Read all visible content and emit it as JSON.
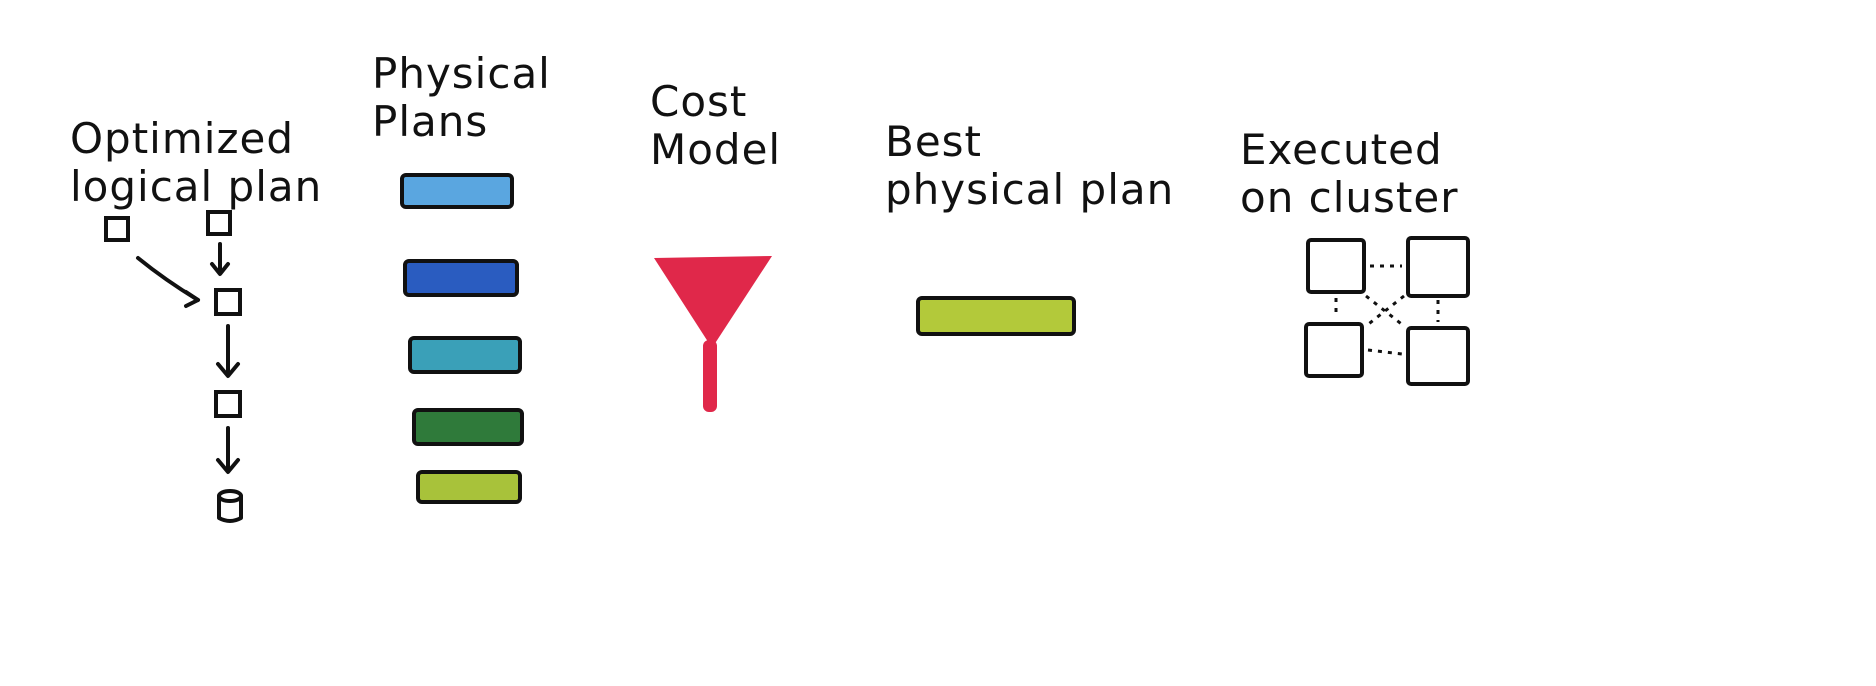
{
  "labels": {
    "optimized_logical_plan": "Optimized\nlogical plan",
    "physical_plans": "Physical\nPlans",
    "cost_model": "Cost\nModel",
    "best_physical_plan": "Best\nphysical plan",
    "executed_on_cluster": "Executed\non cluster"
  },
  "colors": {
    "ink": "#111111",
    "plans": [
      "#5aa6e0",
      "#2a5cc0",
      "#3aa0b8",
      "#2f7a3a",
      "#a8c23a"
    ],
    "funnel": "#e0284a",
    "best_plan": "#b3c93a"
  },
  "icons": {
    "funnel": "funnel-icon",
    "logical_nodes": "square-node-icon",
    "data_source": "cylinder-icon",
    "cluster_nodes": "server-node-icon"
  }
}
